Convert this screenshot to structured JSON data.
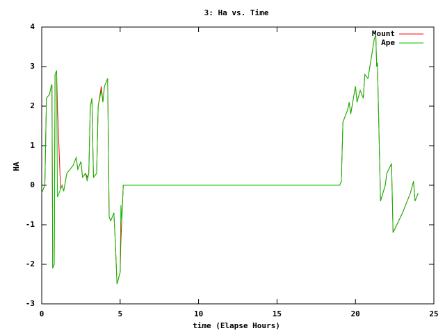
{
  "chart_data": {
    "type": "line",
    "title": "3: Ha vs. Time",
    "x_label": "time (Elapse Hours)",
    "y_label": "HA",
    "x": [
      0,
      0.2,
      0.3,
      0.5,
      0.6,
      0.65,
      0.7,
      0.8,
      0.85,
      0.95,
      1.0,
      1.2,
      1.3,
      1.4,
      1.6,
      1.8,
      2.0,
      2.2,
      2.3,
      2.5,
      2.6,
      2.8,
      2.9,
      3.0,
      3.1,
      3.2,
      3.3,
      3.5,
      3.6,
      3.8,
      3.9,
      4.0,
      4.2,
      4.3,
      4.4,
      4.6,
      4.7,
      4.8,
      5.0,
      5.05,
      5.1,
      5.2,
      19.0,
      19.1,
      19.2,
      19.5,
      19.6,
      19.7,
      20.0,
      20.1,
      20.3,
      20.5,
      20.6,
      20.8,
      21.0,
      21.2,
      21.3,
      21.35,
      21.4,
      21.6,
      21.9,
      22.0,
      22.3,
      22.4,
      23.0,
      23.5,
      23.7,
      23.8,
      24.0
    ],
    "series": [
      {
        "name": "Mount",
        "color": "#ff0000",
        "values": [
          -0.2,
          0,
          2.2,
          2.3,
          2.5,
          2.55,
          -2.1,
          -2.0,
          2.8,
          2.9,
          2.0,
          -0.1,
          0.0,
          -0.15,
          0.3,
          0.4,
          0.5,
          0.7,
          0.4,
          0.6,
          0.2,
          0.3,
          0.2,
          0.3,
          2.0,
          2.2,
          0.2,
          0.3,
          2.0,
          2.5,
          2.1,
          2.5,
          2.7,
          -0.8,
          -0.9,
          -0.7,
          -1.5,
          -2.5,
          -2.2,
          -1.4,
          -0.9,
          0,
          0,
          0.1,
          1.6,
          1.9,
          2.1,
          1.8,
          2.5,
          2.1,
          2.4,
          2.2,
          2.8,
          2.7,
          3.2,
          3.7,
          3.8,
          3.0,
          3.1,
          -0.4,
          0.0,
          0.3,
          0.55,
          -1.2,
          -0.7,
          -0.2,
          0.1,
          -0.4,
          -0.2
        ]
      },
      {
        "name": "Ape",
        "color": "#00c000",
        "values": [
          -0.2,
          0,
          2.2,
          2.3,
          2.5,
          2.55,
          -2.1,
          -2.0,
          2.8,
          2.9,
          -0.3,
          -0.1,
          0.0,
          -0.15,
          0.3,
          0.4,
          0.5,
          0.7,
          0.4,
          0.6,
          0.2,
          0.3,
          0.1,
          0.3,
          2.0,
          2.2,
          0.2,
          0.3,
          2.0,
          2.4,
          2.1,
          2.5,
          2.7,
          -0.8,
          -0.9,
          -0.7,
          -1.5,
          -2.5,
          -2.2,
          -0.5,
          -0.9,
          0,
          0,
          0.1,
          1.6,
          1.9,
          2.1,
          1.8,
          2.5,
          2.1,
          2.4,
          2.2,
          2.8,
          2.7,
          3.2,
          3.7,
          3.8,
          3.0,
          3.1,
          -0.4,
          0.0,
          0.3,
          0.55,
          -1.2,
          -0.7,
          -0.2,
          0.1,
          -0.4,
          -0.2
        ]
      }
    ],
    "xlim": [
      0,
      25
    ],
    "xticks": [
      0,
      5,
      10,
      15,
      20,
      25
    ],
    "ylim": [
      -3,
      4
    ],
    "yticks": [
      -3,
      -2,
      -1,
      0,
      1,
      2,
      3,
      4
    ],
    "legend": "top-right",
    "grid": false
  }
}
